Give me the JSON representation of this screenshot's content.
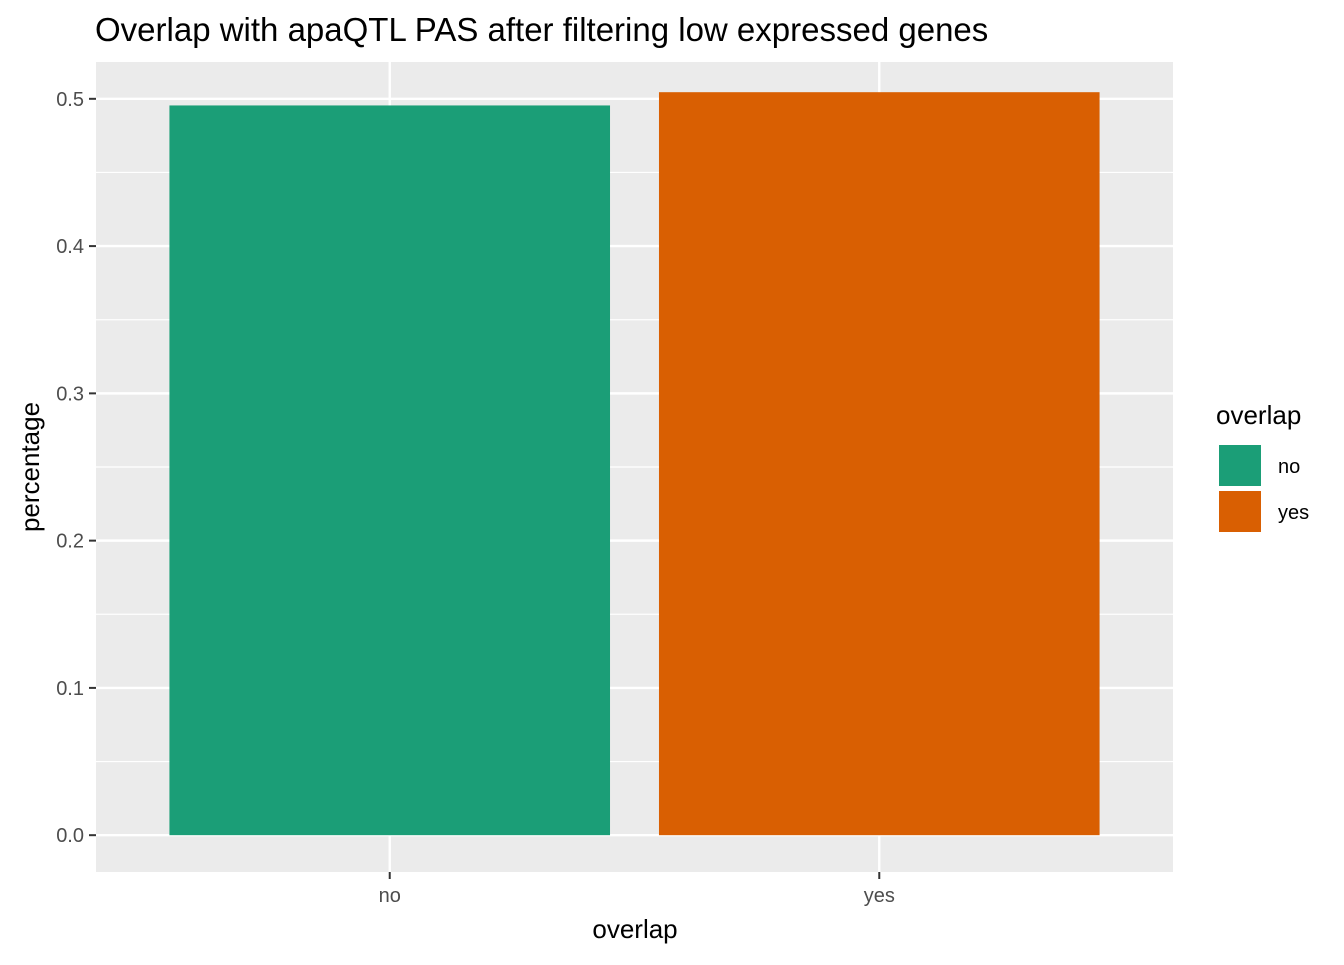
{
  "chart_data": {
    "type": "bar",
    "title": "Overlap with apaQTL PAS after filtering low expressed genes",
    "xlabel": "overlap",
    "ylabel": "percentage",
    "categories": [
      "no",
      "yes"
    ],
    "values": [
      0.4955,
      0.5045
    ],
    "colors": [
      "#1b9e77",
      "#d95f02"
    ],
    "ylim": [
      -0.025,
      0.525
    ],
    "yticks": [
      0.0,
      0.1,
      0.2,
      0.3,
      0.4,
      0.5
    ],
    "ytick_labels": [
      "0.0",
      "0.1",
      "0.2",
      "0.3",
      "0.4",
      "0.5"
    ],
    "grid": true,
    "panel_background": "#ebebeb",
    "legend": {
      "title": "overlap",
      "position": "right",
      "entries": [
        "no",
        "yes"
      ]
    }
  }
}
